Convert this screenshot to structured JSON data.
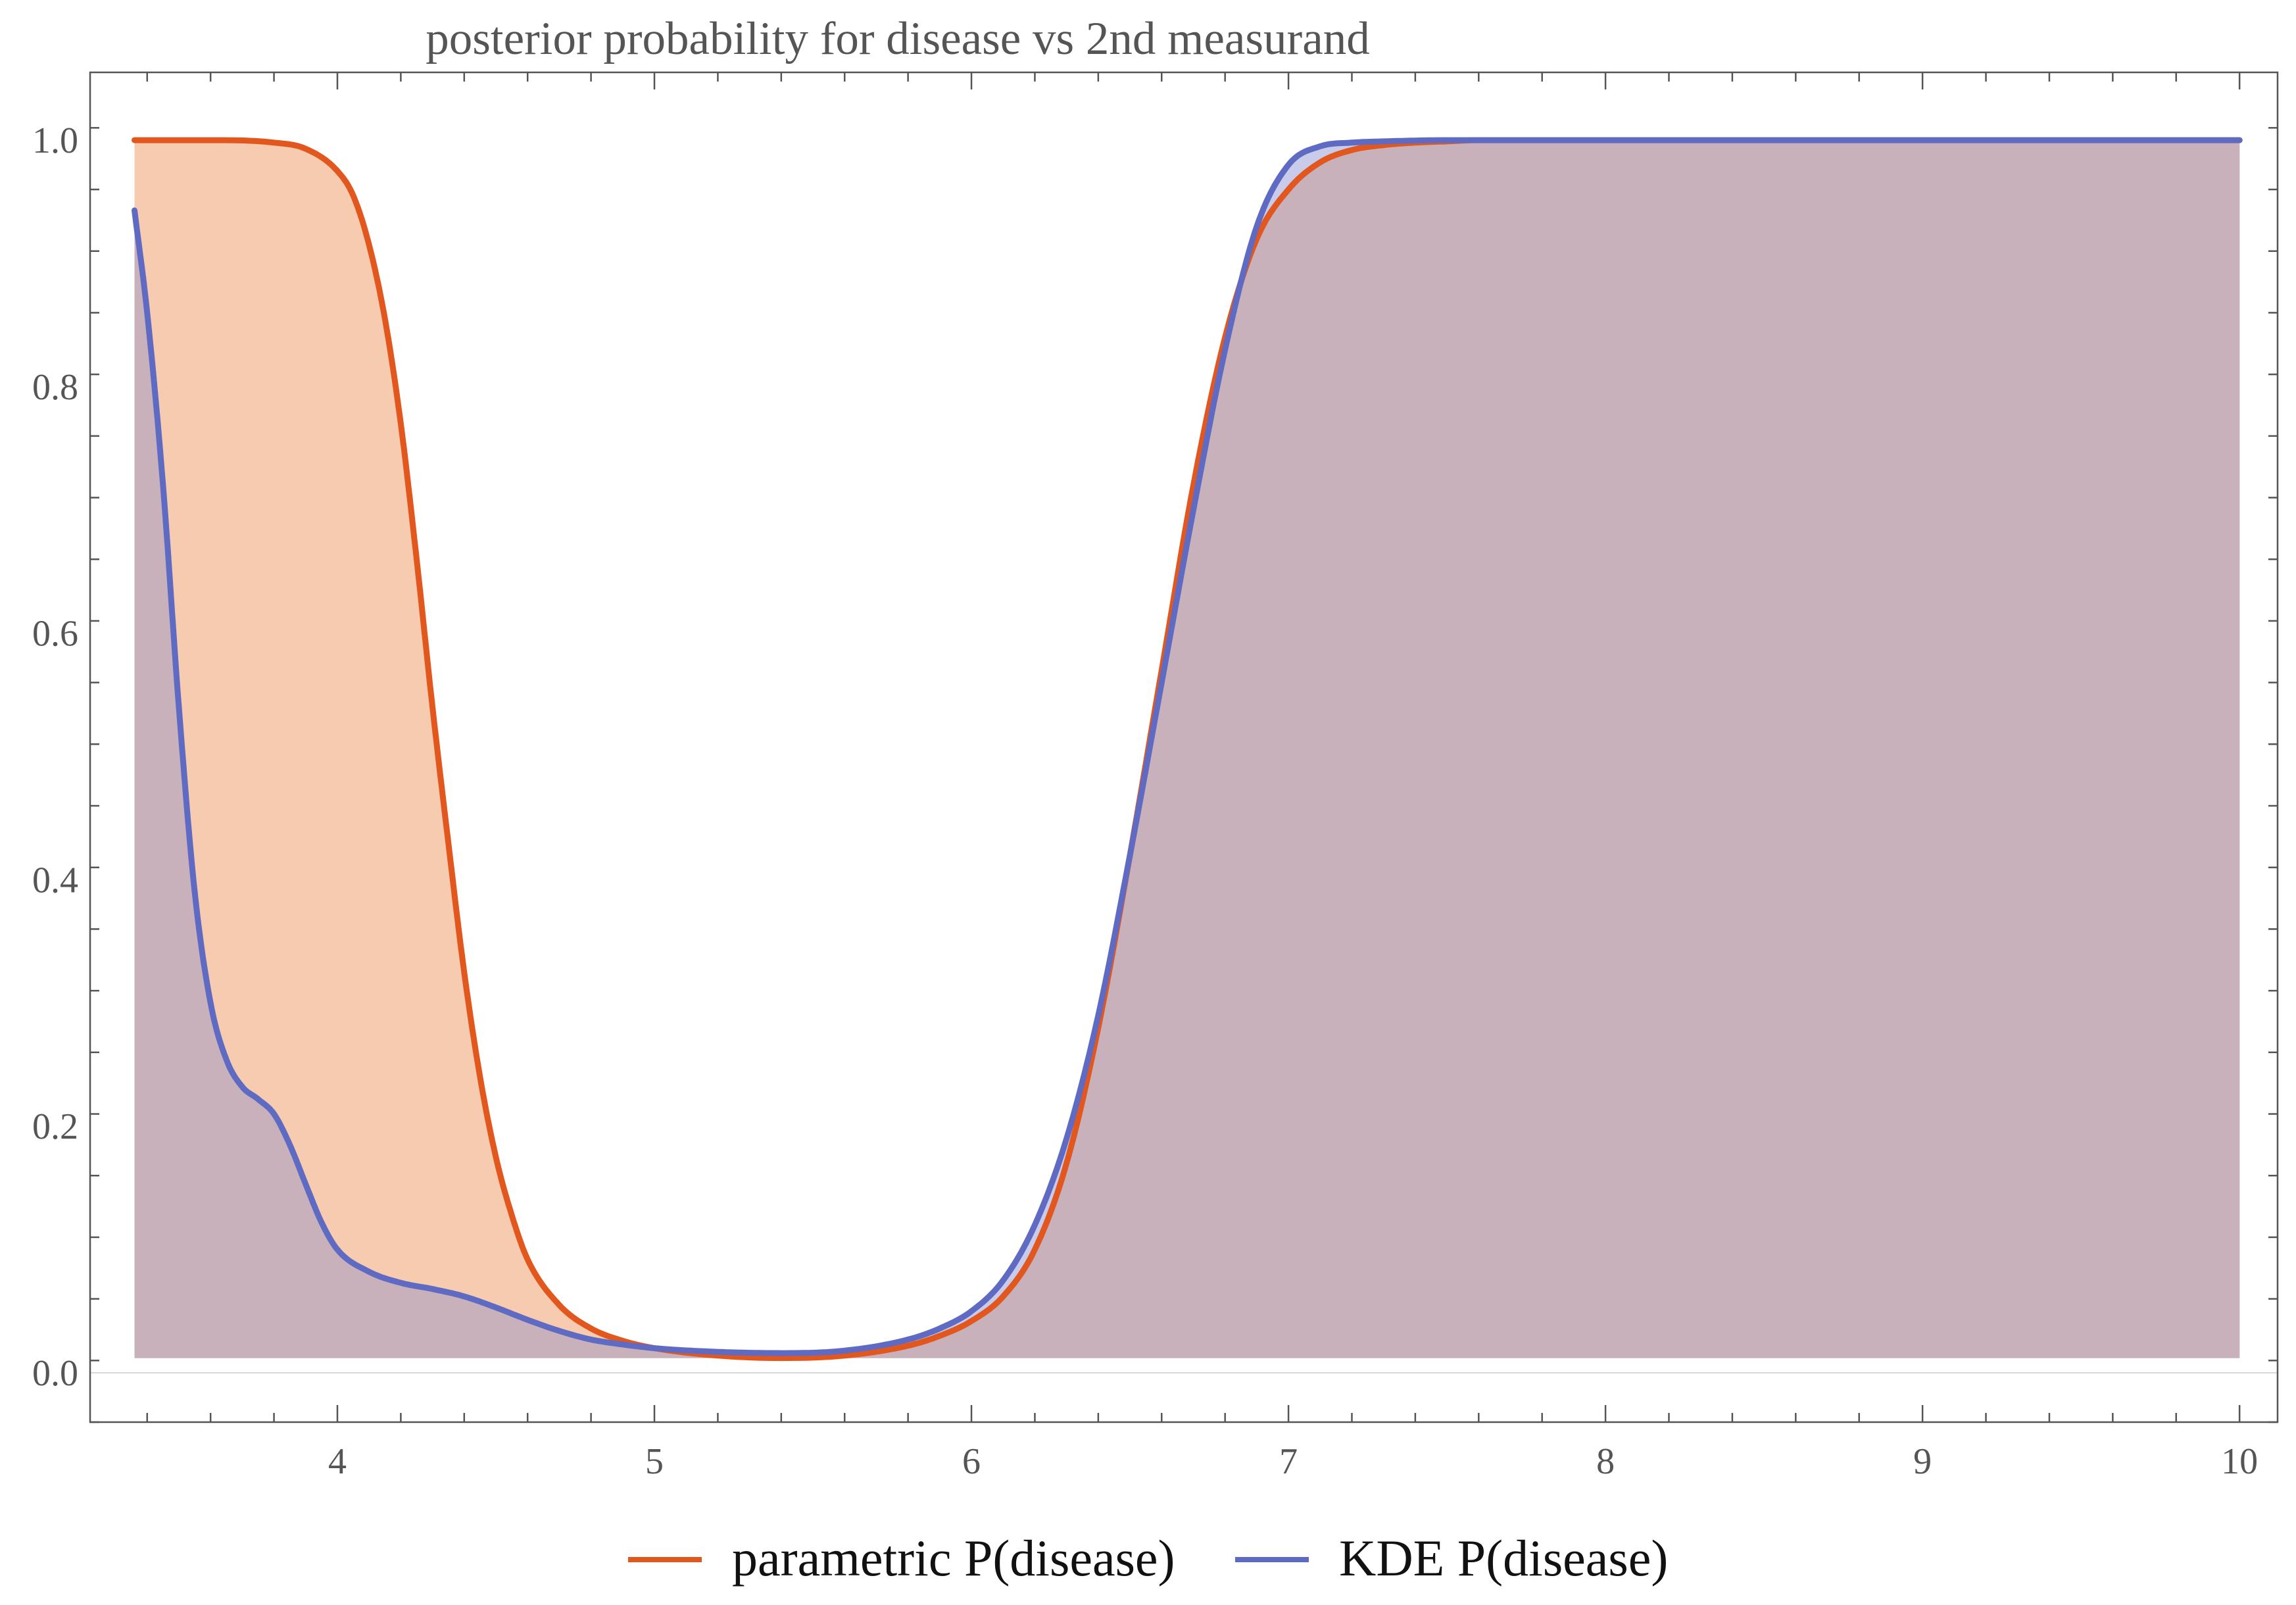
{
  "colors": {
    "parametric": "#e2571d",
    "parametric_fill": "#f6cbb0",
    "kde": "#5f6bc2",
    "kde_fill": "#c8cbea",
    "overlap_fill": "#c8b1ba",
    "frame": "#555555",
    "zero_line": "#d8d8d8"
  },
  "chart_data": {
    "type": "area",
    "title": "posterior probability for disease vs 2nd measurand",
    "xlabel": "",
    "ylabel": "",
    "xlim": [
      3.22,
      10.12
    ],
    "ylim": [
      -0.04,
      1.055
    ],
    "fill_baseline": 0.012,
    "xticks": [
      4,
      5,
      6,
      7,
      8,
      9,
      10
    ],
    "xtick_labels": [
      "4",
      "5",
      "6",
      "7",
      "8",
      "9",
      "10"
    ],
    "yticks": [
      0.0,
      0.2,
      0.4,
      0.6,
      0.8,
      1.0
    ],
    "ytick_labels": [
      "0.0",
      "0.2",
      "0.4",
      "0.6",
      "0.8",
      "1.0"
    ],
    "legend_position": "bottom-center",
    "series": [
      {
        "name": "parametric P(disease)",
        "x": [
          3.36,
          3.6,
          3.8,
          3.9,
          4.0,
          4.05,
          4.1,
          4.15,
          4.2,
          4.25,
          4.3,
          4.35,
          4.4,
          4.45,
          4.5,
          4.55,
          4.6,
          4.7,
          4.8,
          4.9,
          5.0,
          5.2,
          5.4,
          5.6,
          5.8,
          5.9,
          6.0,
          6.1,
          6.2,
          6.3,
          6.4,
          6.5,
          6.6,
          6.7,
          6.8,
          6.9,
          7.0,
          7.1,
          7.2,
          7.3,
          7.4,
          7.5,
          7.6,
          7.8,
          8.0,
          9.0,
          10.0
        ],
        "values": [
          1.0,
          1.0,
          0.998,
          0.993,
          0.975,
          0.955,
          0.915,
          0.855,
          0.77,
          0.66,
          0.54,
          0.43,
          0.325,
          0.24,
          0.175,
          0.128,
          0.092,
          0.055,
          0.036,
          0.026,
          0.02,
          0.014,
          0.012,
          0.014,
          0.022,
          0.03,
          0.042,
          0.062,
          0.1,
          0.17,
          0.28,
          0.42,
          0.57,
          0.72,
          0.84,
          0.92,
          0.96,
          0.982,
          0.992,
          0.996,
          0.998,
          0.999,
          1.0,
          1.0,
          1.0,
          1.0,
          1.0
        ]
      },
      {
        "name": "KDE P(disease)",
        "x": [
          3.36,
          3.4,
          3.45,
          3.5,
          3.55,
          3.6,
          3.65,
          3.7,
          3.75,
          3.8,
          3.85,
          3.9,
          3.95,
          4.0,
          4.1,
          4.2,
          4.3,
          4.4,
          4.5,
          4.6,
          4.7,
          4.8,
          4.9,
          5.0,
          5.2,
          5.4,
          5.6,
          5.8,
          5.9,
          6.0,
          6.1,
          6.2,
          6.3,
          6.4,
          6.5,
          6.6,
          6.7,
          6.8,
          6.9,
          7.0,
          7.1,
          7.2,
          7.3,
          7.5,
          8.0,
          9.0,
          10.0
        ],
        "values": [
          0.943,
          0.86,
          0.72,
          0.54,
          0.39,
          0.3,
          0.254,
          0.232,
          0.222,
          0.21,
          0.185,
          0.153,
          0.122,
          0.1,
          0.082,
          0.073,
          0.068,
          0.062,
          0.053,
          0.043,
          0.034,
          0.027,
          0.023,
          0.02,
          0.017,
          0.016,
          0.018,
          0.027,
          0.036,
          0.05,
          0.075,
          0.12,
          0.19,
          0.29,
          0.42,
          0.56,
          0.7,
          0.83,
          0.93,
          0.98,
          0.995,
          0.998,
          0.999,
          1.0,
          1.0,
          1.0,
          1.0
        ]
      }
    ]
  }
}
